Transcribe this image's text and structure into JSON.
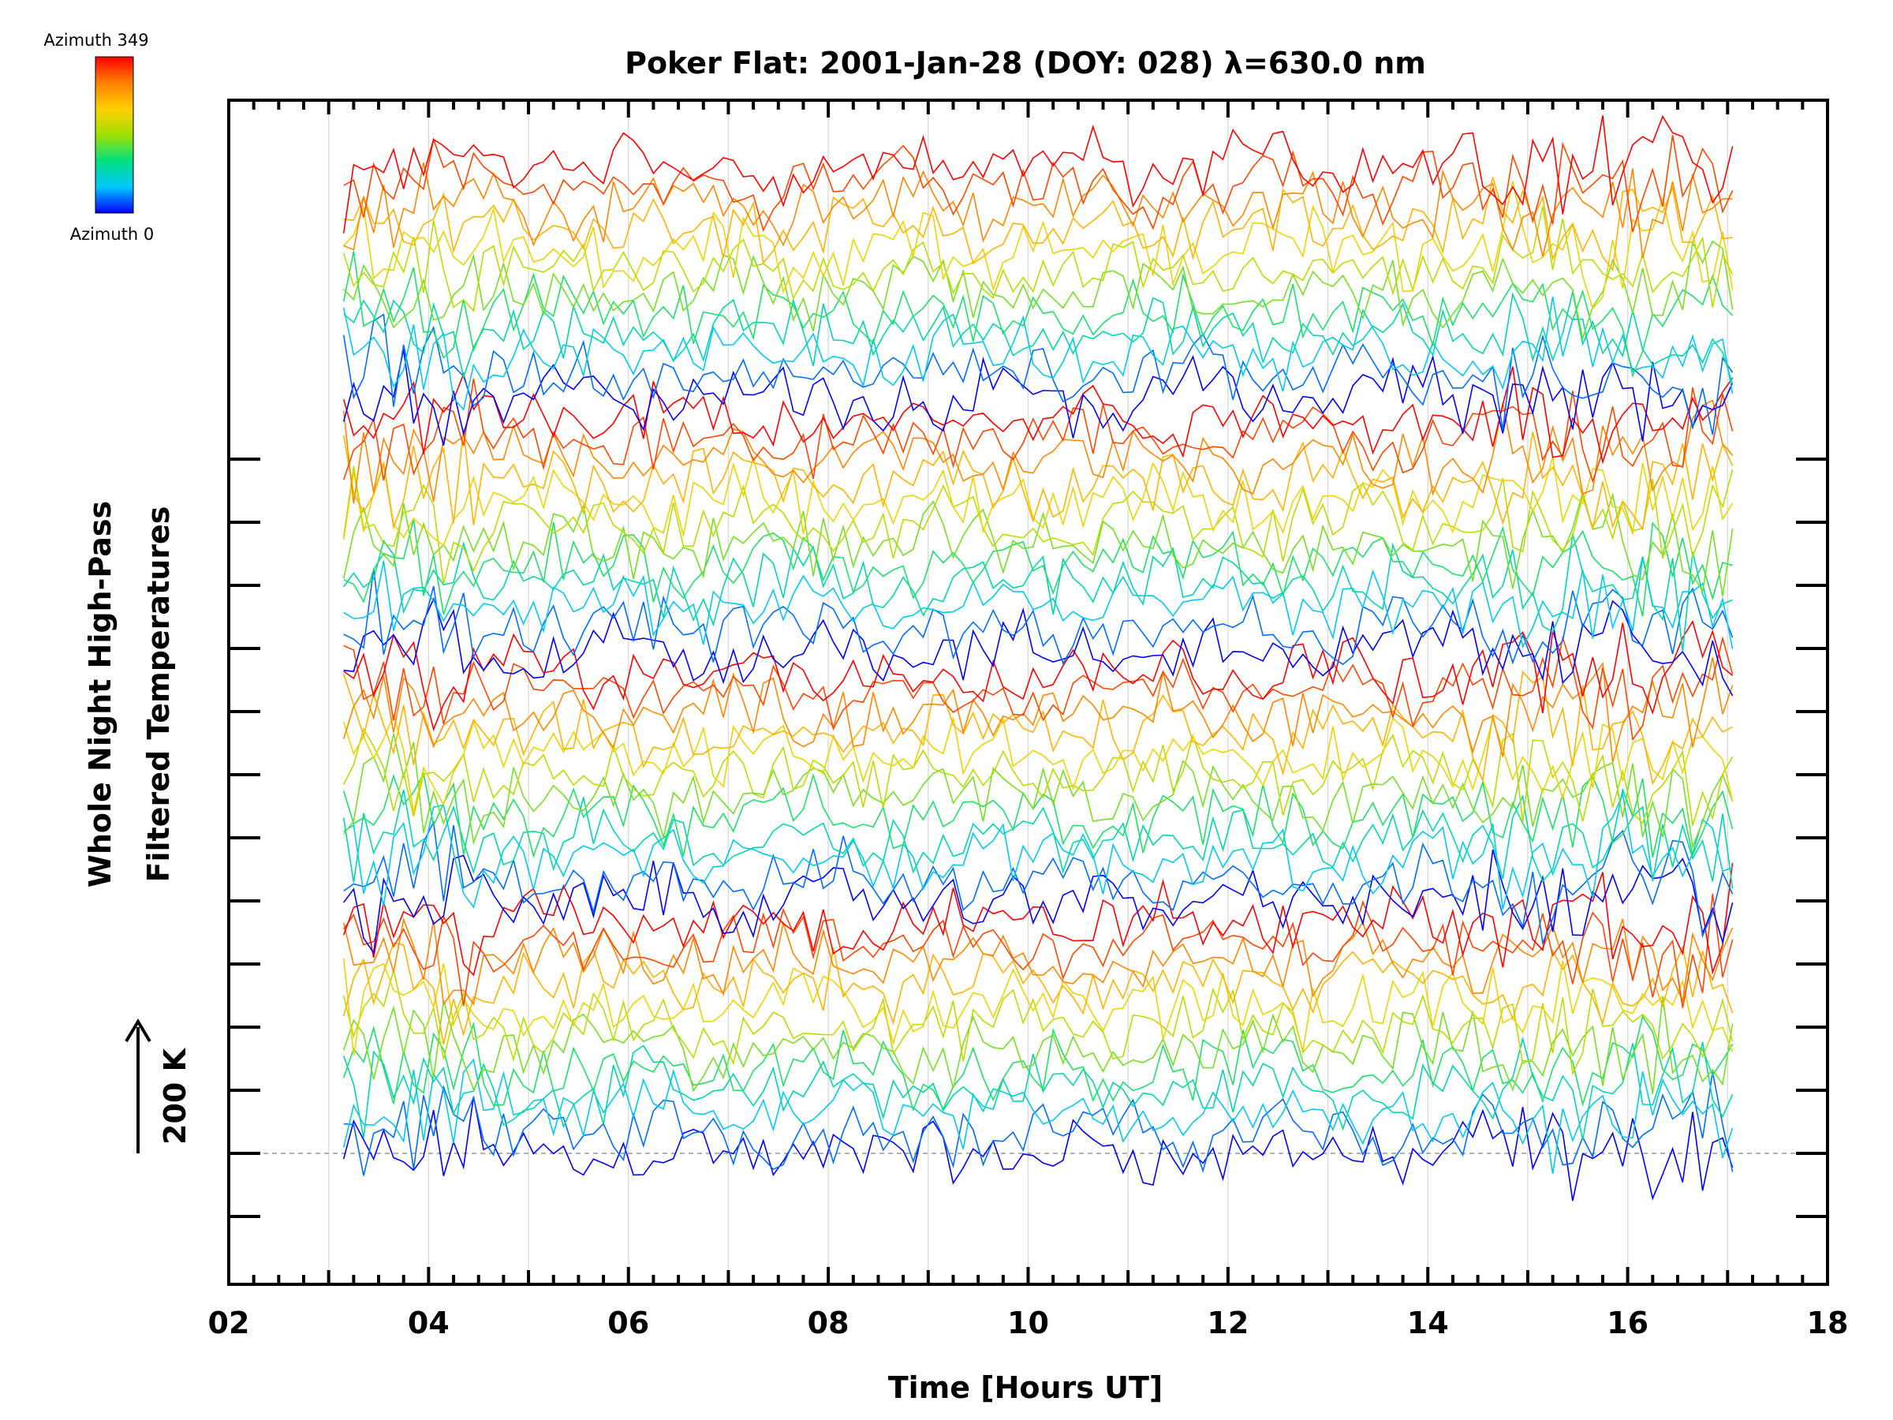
{
  "chart_data": {
    "type": "line",
    "title": "Poker Flat: 2001-Jan-28 (DOY: 028) λ=630.0 nm",
    "xlabel": "Time [Hours UT]",
    "ylabel_line1": "Whole Night High-Pass",
    "ylabel_line2": "Filtered Temperatures",
    "scale_label": "200 K",
    "x_range": [
      2,
      18
    ],
    "x_ticks": [
      "02",
      "04",
      "06",
      "08",
      "10",
      "12",
      "14",
      "16",
      "18"
    ],
    "data_x_range": [
      3.15,
      17.05
    ],
    "time_step_hours": 0.1,
    "colorbar": {
      "top_label": "Azimuth 349",
      "bottom_label": "Azimuth 0",
      "colors": [
        "#0000ff",
        "#00c8ff",
        "#00e080",
        "#a0e000",
        "#ffd000",
        "#ff8000",
        "#ff0000"
      ]
    },
    "series_bands": 4,
    "series_per_band": 12,
    "band_spacing_k": 400,
    "series_offset_k": 40,
    "noise_amplitude_k": 60,
    "baseline_label_position": "bottom band at dashed reference line"
  }
}
